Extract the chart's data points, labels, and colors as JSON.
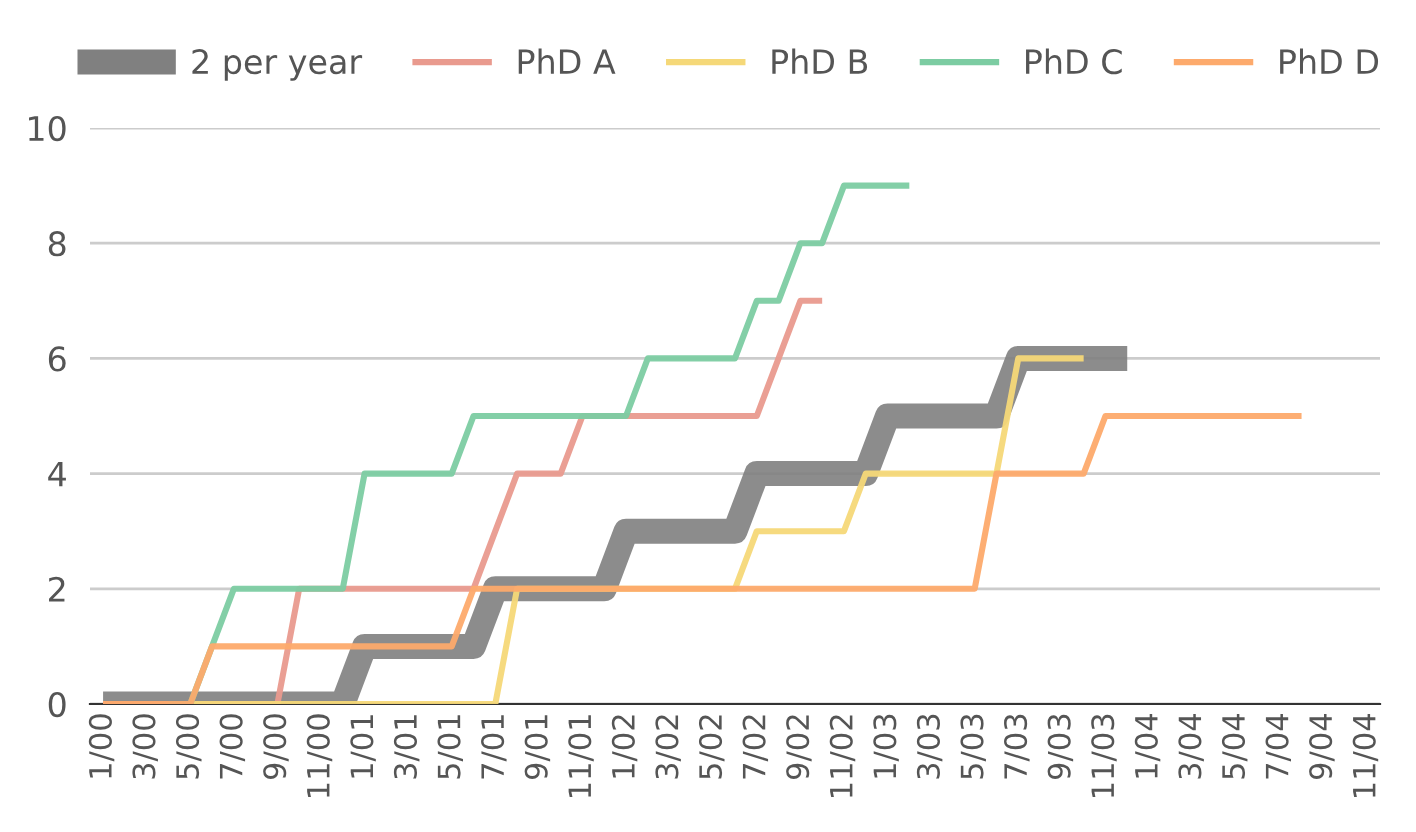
{
  "chart_data": {
    "type": "line",
    "categories": [
      "1/00",
      null,
      "3/00",
      null,
      "5/00",
      null,
      "7/00",
      null,
      "9/00",
      null,
      "11/00",
      null,
      "1/01",
      null,
      "3/01",
      null,
      "5/01",
      null,
      "7/01",
      null,
      "9/01",
      null,
      "11/01",
      null,
      "1/02",
      null,
      "3/02",
      null,
      "5/02",
      null,
      "7/02",
      null,
      "9/02",
      null,
      "11/02",
      null,
      "1/03",
      null,
      "3/03",
      null,
      "5/03",
      null,
      "7/03",
      null,
      "9/03",
      null,
      "11/03",
      null,
      "1/04",
      null,
      "3/04",
      null,
      "5/04",
      null,
      "7/04",
      null,
      "9/04",
      null,
      "11/04"
    ],
    "series": [
      {
        "name": "2 per year",
        "color": "#808080",
        "values": [
          0,
          0,
          0,
          0,
          0,
          0,
          0,
          0,
          0,
          0,
          0,
          0,
          1,
          1,
          1,
          1,
          1,
          1,
          2,
          2,
          2,
          2,
          2,
          2,
          3,
          3,
          3,
          3,
          3,
          3,
          4,
          4,
          4,
          4,
          4,
          4,
          5,
          5,
          5,
          5,
          5,
          5,
          6,
          6,
          6,
          6,
          6,
          6,
          null,
          null,
          null,
          null,
          null,
          null,
          null,
          null,
          null,
          null,
          null
        ]
      },
      {
        "name": "PhD A",
        "color": "#e99a8e",
        "values": [
          0,
          0,
          0,
          0,
          0,
          0,
          0,
          0,
          0,
          2,
          2,
          2,
          2,
          2,
          2,
          2,
          2,
          2,
          3,
          4,
          4,
          4,
          5,
          5,
          5,
          5,
          5,
          5,
          5,
          5,
          5,
          6,
          7,
          7,
          null,
          null,
          null,
          null,
          null,
          null,
          null,
          null,
          null,
          null,
          null,
          null,
          null,
          null,
          null,
          null,
          null,
          null,
          null,
          null,
          null,
          null,
          null,
          null,
          null
        ]
      },
      {
        "name": "PhD B",
        "color": "#f5d878",
        "values": [
          null,
          null,
          null,
          0,
          0,
          0,
          0,
          0,
          0,
          0,
          0,
          0,
          0,
          0,
          0,
          0,
          0,
          0,
          0,
          2,
          2,
          2,
          2,
          2,
          2,
          2,
          2,
          2,
          2,
          2,
          3,
          3,
          3,
          3,
          3,
          4,
          4,
          4,
          4,
          4,
          4,
          4,
          6,
          6,
          6,
          6,
          null,
          null,
          null,
          null,
          null,
          null,
          null,
          null,
          null,
          null,
          null,
          null,
          null
        ]
      },
      {
        "name": "PhD C",
        "color": "#7ccca2",
        "values": [
          null,
          null,
          null,
          0,
          0,
          1,
          2,
          2,
          2,
          2,
          2,
          2,
          4,
          4,
          4,
          4,
          4,
          5,
          5,
          5,
          5,
          5,
          5,
          5,
          5,
          6,
          6,
          6,
          6,
          6,
          7,
          7,
          8,
          8,
          9,
          9,
          9,
          9,
          null,
          null,
          null,
          null,
          null,
          null,
          null,
          null,
          null,
          null,
          null,
          null,
          null,
          null,
          null,
          null,
          null,
          null,
          null,
          null,
          null
        ]
      },
      {
        "name": "PhD D",
        "color": "#fdaa6c",
        "values": [
          0,
          0,
          0,
          0,
          0,
          1,
          1,
          1,
          1,
          1,
          1,
          1,
          1,
          1,
          1,
          1,
          1,
          2,
          2,
          2,
          2,
          2,
          2,
          2,
          2,
          2,
          2,
          2,
          2,
          2,
          2,
          2,
          2,
          2,
          2,
          2,
          2,
          2,
          2,
          2,
          2,
          4,
          4,
          4,
          4,
          4,
          5,
          5,
          5,
          5,
          5,
          5,
          5,
          5,
          5,
          5,
          null,
          null,
          null
        ]
      }
    ],
    "ylim": [
      0,
      10
    ],
    "yticks": [
      0,
      2,
      4,
      6,
      8,
      10
    ],
    "grid": "y",
    "legend": "top",
    "marker": "none",
    "line_style": "solid"
  }
}
